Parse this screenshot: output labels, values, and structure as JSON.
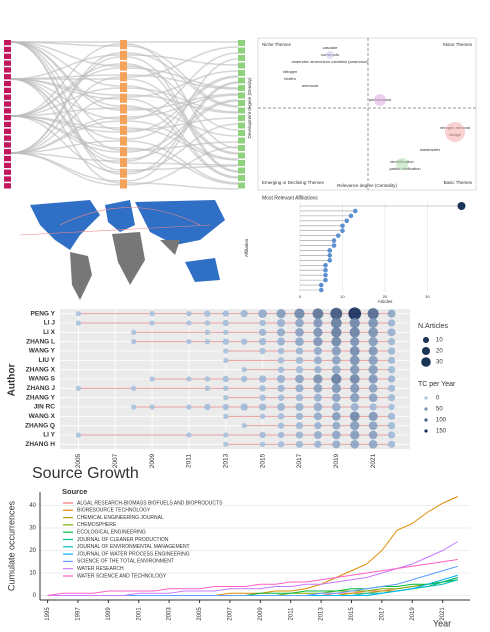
{
  "thematic_map": {
    "quadrants": [
      "Niche Themes",
      "Motor Themes",
      "Emerging or Declining Themes",
      "Basic Themes"
    ],
    "x_label": "Relevance degree (Centrality)",
    "y_label": "Development degree (Density)",
    "clusters": [
      "cascade",
      "constructs",
      "anaerobic ammonium oxidation (anammox)",
      "nitrogen",
      "biofilm",
      "ammonia",
      "performance",
      "nitrogen removal",
      "sludge",
      "wastewater",
      "denitrification",
      "partial nitrification"
    ]
  },
  "affiliations": {
    "type": "lollipop",
    "title": "Most Relevant Affiliations",
    "x_label": "Articles",
    "y_label": "Affiliation",
    "categories": [
      null,
      null,
      null,
      null,
      null,
      null,
      null,
      null,
      null,
      null,
      null,
      null,
      null,
      null,
      null,
      null,
      null,
      null
    ],
    "values": [
      38,
      13,
      12,
      11,
      10,
      10,
      9,
      8,
      8,
      7,
      7,
      7,
      6,
      6,
      6,
      6,
      5,
      5
    ],
    "xlim": [
      0,
      40
    ],
    "xticks": [
      0,
      10,
      20,
      30
    ]
  },
  "chart_data": [
    {
      "type": "author_production",
      "y_label": "Author",
      "size_legend_title": "N.Articles",
      "size_legend": [
        10,
        20,
        30
      ],
      "color_legend_title": "TC per Year",
      "color_legend": [
        0,
        50,
        100,
        150
      ],
      "xlim": [
        2004,
        2023
      ],
      "xticks": [
        2005,
        2007,
        2009,
        2011,
        2013,
        2015,
        2017,
        2019,
        2021
      ],
      "series": [
        {
          "name": "PENG Y",
          "years": [
            2005,
            2009,
            2011,
            2012,
            2013,
            2014,
            2015,
            2016,
            2017,
            2018,
            2019,
            2020,
            2021,
            2022
          ],
          "articles": [
            1,
            1,
            1,
            2,
            2,
            3,
            5,
            6,
            8,
            9,
            12,
            14,
            10,
            4
          ],
          "tc": [
            1,
            2,
            3,
            5,
            8,
            12,
            25,
            40,
            60,
            80,
            110,
            150,
            90,
            30
          ]
        },
        {
          "name": "LI J",
          "years": [
            2005,
            2009,
            2011,
            2012,
            2013,
            2015,
            2016,
            2017,
            2018,
            2019,
            2020,
            2021,
            2022
          ],
          "articles": [
            1,
            1,
            1,
            1,
            2,
            2,
            4,
            5,
            6,
            9,
            8,
            7,
            3
          ],
          "tc": [
            1,
            2,
            2,
            3,
            5,
            10,
            20,
            30,
            45,
            70,
            60,
            50,
            15
          ]
        },
        {
          "name": "LI X",
          "years": [
            2008,
            2012,
            2013,
            2015,
            2016,
            2017,
            2018,
            2019,
            2020,
            2021,
            2022
          ],
          "articles": [
            1,
            1,
            1,
            3,
            4,
            5,
            6,
            8,
            8,
            7,
            4
          ],
          "tc": [
            1,
            3,
            4,
            15,
            25,
            35,
            50,
            70,
            65,
            50,
            20
          ]
        },
        {
          "name": "ZHANG L",
          "years": [
            2008,
            2011,
            2012,
            2013,
            2014,
            2015,
            2016,
            2017,
            2018,
            2019,
            2020,
            2021,
            2022
          ],
          "articles": [
            1,
            1,
            1,
            2,
            2,
            3,
            4,
            5,
            6,
            7,
            6,
            6,
            3
          ],
          "tc": [
            1,
            2,
            3,
            5,
            6,
            10,
            18,
            30,
            45,
            60,
            50,
            40,
            12
          ]
        },
        {
          "name": "WANG Y",
          "years": [
            2013,
            2015,
            2016,
            2017,
            2018,
            2019,
            2020,
            2021,
            2022
          ],
          "articles": [
            1,
            2,
            2,
            3,
            4,
            6,
            7,
            6,
            3
          ],
          "tc": [
            2,
            5,
            8,
            15,
            25,
            40,
            55,
            45,
            15
          ]
        },
        {
          "name": "LIU Y",
          "years": [
            2013,
            2016,
            2017,
            2018,
            2019,
            2020,
            2021,
            2022
          ],
          "articles": [
            1,
            2,
            3,
            4,
            5,
            7,
            6,
            3
          ],
          "tc": [
            2,
            6,
            12,
            22,
            35,
            50,
            40,
            12
          ]
        },
        {
          "name": "ZHANG X",
          "years": [
            2014,
            2016,
            2017,
            2018,
            2019,
            2020,
            2021,
            2022
          ],
          "articles": [
            1,
            2,
            3,
            3,
            5,
            6,
            6,
            3
          ],
          "tc": [
            2,
            6,
            10,
            20,
            30,
            45,
            40,
            10
          ]
        },
        {
          "name": "WANG S",
          "years": [
            2009,
            2011,
            2012,
            2013,
            2014,
            2015,
            2016,
            2017,
            2018,
            2019,
            2020,
            2021,
            2022
          ],
          "articles": [
            1,
            1,
            1,
            2,
            2,
            3,
            4,
            5,
            6,
            8,
            7,
            6,
            3
          ],
          "tc": [
            1,
            2,
            3,
            5,
            8,
            12,
            20,
            35,
            50,
            70,
            60,
            45,
            15
          ]
        },
        {
          "name": "ZHANG J",
          "years": [
            2005,
            2008,
            2012,
            2013,
            2015,
            2016,
            2017,
            2018,
            2019,
            2020,
            2021,
            2022
          ],
          "articles": [
            1,
            1,
            1,
            1,
            2,
            3,
            4,
            5,
            6,
            6,
            5,
            3
          ],
          "tc": [
            1,
            1,
            3,
            4,
            8,
            15,
            25,
            35,
            45,
            45,
            35,
            10
          ]
        },
        {
          "name": "ZHANG Y",
          "years": [
            2013,
            2015,
            2016,
            2017,
            2018,
            2019,
            2020,
            2021,
            2022
          ],
          "articles": [
            1,
            2,
            2,
            3,
            4,
            5,
            6,
            5,
            3
          ],
          "tc": [
            2,
            4,
            8,
            12,
            20,
            35,
            40,
            35,
            10
          ]
        },
        {
          "name": "JIN RC",
          "years": [
            2008,
            2009,
            2011,
            2012,
            2013,
            2014,
            2015,
            2016,
            2017,
            2018,
            2019,
            2020,
            2021,
            2022
          ],
          "articles": [
            1,
            1,
            1,
            2,
            2,
            3,
            3,
            4,
            4,
            5,
            5,
            4,
            3,
            2
          ],
          "tc": [
            1,
            2,
            3,
            5,
            8,
            10,
            12,
            15,
            18,
            22,
            25,
            20,
            12,
            5
          ]
        },
        {
          "name": "WANG X",
          "years": [
            2013,
            2015,
            2016,
            2017,
            2018,
            2019,
            2020,
            2021,
            2022
          ],
          "articles": [
            1,
            1,
            2,
            3,
            4,
            5,
            7,
            6,
            3
          ],
          "tc": [
            2,
            4,
            8,
            15,
            25,
            40,
            60,
            45,
            12
          ]
        },
        {
          "name": "ZHANG Q",
          "years": [
            2014,
            2016,
            2017,
            2018,
            2019,
            2020,
            2021,
            2022
          ],
          "articles": [
            1,
            2,
            3,
            3,
            4,
            6,
            5,
            3
          ],
          "tc": [
            2,
            6,
            10,
            18,
            28,
            40,
            35,
            10
          ]
        },
        {
          "name": "LI Y",
          "years": [
            2005,
            2011,
            2013,
            2015,
            2016,
            2017,
            2018,
            2019,
            2020,
            2021,
            2022
          ],
          "articles": [
            1,
            1,
            1,
            2,
            2,
            3,
            4,
            5,
            6,
            5,
            3
          ],
          "tc": [
            1,
            2,
            3,
            6,
            10,
            15,
            22,
            32,
            40,
            35,
            10
          ]
        },
        {
          "name": "ZHANG H",
          "years": [
            2013,
            2015,
            2016,
            2017,
            2018,
            2019,
            2020,
            2021,
            2022
          ],
          "articles": [
            1,
            1,
            2,
            3,
            3,
            4,
            5,
            5,
            3
          ],
          "tc": [
            2,
            3,
            6,
            10,
            15,
            25,
            30,
            30,
            10
          ]
        }
      ]
    },
    {
      "type": "line",
      "title": "Source Growth",
      "legend_title": "Source",
      "y_label": "Cumulate occurrences",
      "x_label": "Year",
      "xlim": [
        1994.5,
        2022.8
      ],
      "ylim": [
        -2,
        46
      ],
      "yticks": [
        0,
        10,
        20,
        30,
        40
      ],
      "xticks": [
        1995,
        1997,
        1999,
        2001,
        2003,
        2005,
        2007,
        2009,
        2011,
        2013,
        2015,
        2017,
        2019,
        2021
      ],
      "x": [
        1995,
        1996,
        1997,
        1998,
        1999,
        2000,
        2001,
        2002,
        2003,
        2004,
        2005,
        2006,
        2007,
        2008,
        2009,
        2010,
        2011,
        2012,
        2013,
        2014,
        2015,
        2016,
        2017,
        2018,
        2019,
        2020,
        2021,
        2022
      ],
      "series": [
        {
          "name": "ALGAL RESEARCH-BIOMASS BIOFUELS AND BIOPRODUCTS",
          "color": "#f8766d",
          "values": [
            0,
            0,
            0,
            0,
            0,
            0,
            0,
            0,
            0,
            0,
            0,
            0,
            0,
            0,
            0,
            0,
            0,
            0,
            0,
            1,
            1,
            2,
            2,
            3,
            4,
            5,
            6,
            8
          ]
        },
        {
          "name": "BIORESOURCE TECHNOLOGY",
          "color": "#de8c00",
          "values": [
            0,
            0,
            0,
            0,
            0,
            0,
            0,
            0,
            0,
            0,
            0,
            0,
            1,
            1,
            1,
            2,
            2,
            3,
            5,
            8,
            11,
            14,
            20,
            29,
            32,
            37,
            41,
            44
          ]
        },
        {
          "name": "CHEMICAL ENGINEERING JOURNAL",
          "color": "#b79f00",
          "values": [
            0,
            0,
            0,
            0,
            0,
            0,
            0,
            0,
            0,
            0,
            0,
            0,
            0,
            0,
            0,
            0,
            0,
            0,
            0,
            0,
            1,
            1,
            2,
            2,
            3,
            4,
            6,
            8
          ]
        },
        {
          "name": "CHEMOSPHERE",
          "color": "#7cae00",
          "values": [
            0,
            0,
            0,
            0,
            0,
            0,
            0,
            0,
            0,
            0,
            0,
            0,
            0,
            0,
            0,
            0,
            1,
            1,
            1,
            2,
            2,
            2,
            3,
            3,
            4,
            5,
            6,
            7
          ]
        },
        {
          "name": "ECOLOGICAL ENGINEERING",
          "color": "#00ba38",
          "values": [
            0,
            0,
            0,
            0,
            0,
            0,
            0,
            0,
            0,
            0,
            0,
            0,
            0,
            0,
            1,
            1,
            1,
            2,
            2,
            2,
            3,
            3,
            4,
            4,
            5,
            5,
            6,
            7
          ]
        },
        {
          "name": "JOURNAL OF CLEANER PRODUCTION",
          "color": "#00c08b",
          "values": [
            0,
            0,
            0,
            0,
            0,
            0,
            0,
            0,
            0,
            0,
            0,
            0,
            0,
            0,
            0,
            0,
            0,
            0,
            0,
            0,
            0,
            0,
            1,
            2,
            3,
            4,
            6,
            8
          ]
        },
        {
          "name": "JOURNAL OF ENVIRONMENTAL MANAGEMENT",
          "color": "#00bfc4",
          "values": [
            0,
            0,
            0,
            0,
            0,
            0,
            0,
            0,
            0,
            0,
            0,
            0,
            0,
            0,
            0,
            0,
            0,
            0,
            0,
            0,
            0,
            1,
            1,
            2,
            3,
            4,
            5,
            7
          ]
        },
        {
          "name": "JOURNAL OF WATER PROCESS ENGINEERING",
          "color": "#00b4f0",
          "values": [
            0,
            0,
            0,
            0,
            0,
            0,
            0,
            0,
            0,
            0,
            0,
            0,
            0,
            0,
            0,
            0,
            0,
            0,
            0,
            0,
            0,
            0,
            1,
            2,
            3,
            5,
            7,
            9
          ]
        },
        {
          "name": "SCIENCE OF THE TOTAL ENVIRONMENT",
          "color": "#619cff",
          "values": [
            0,
            0,
            0,
            0,
            0,
            0,
            0,
            0,
            0,
            0,
            0,
            0,
            0,
            0,
            0,
            0,
            0,
            0,
            1,
            1,
            2,
            3,
            4,
            5,
            7,
            9,
            11,
            13
          ]
        },
        {
          "name": "WATER RESEARCH",
          "color": "#c77cff",
          "values": [
            0,
            0,
            0,
            0,
            0,
            0,
            1,
            1,
            1,
            2,
            2,
            2,
            3,
            3,
            3,
            4,
            4,
            5,
            5,
            6,
            7,
            8,
            10,
            12,
            14,
            17,
            20,
            24
          ]
        },
        {
          "name": "WATER SCIENCE AND TECHNOLOGY",
          "color": "#ff61c3",
          "values": [
            0,
            1,
            1,
            1,
            2,
            2,
            2,
            2,
            3,
            3,
            3,
            4,
            4,
            4,
            5,
            5,
            6,
            6,
            7,
            8,
            9,
            10,
            11,
            12,
            13,
            14,
            15,
            16
          ]
        }
      ]
    }
  ]
}
